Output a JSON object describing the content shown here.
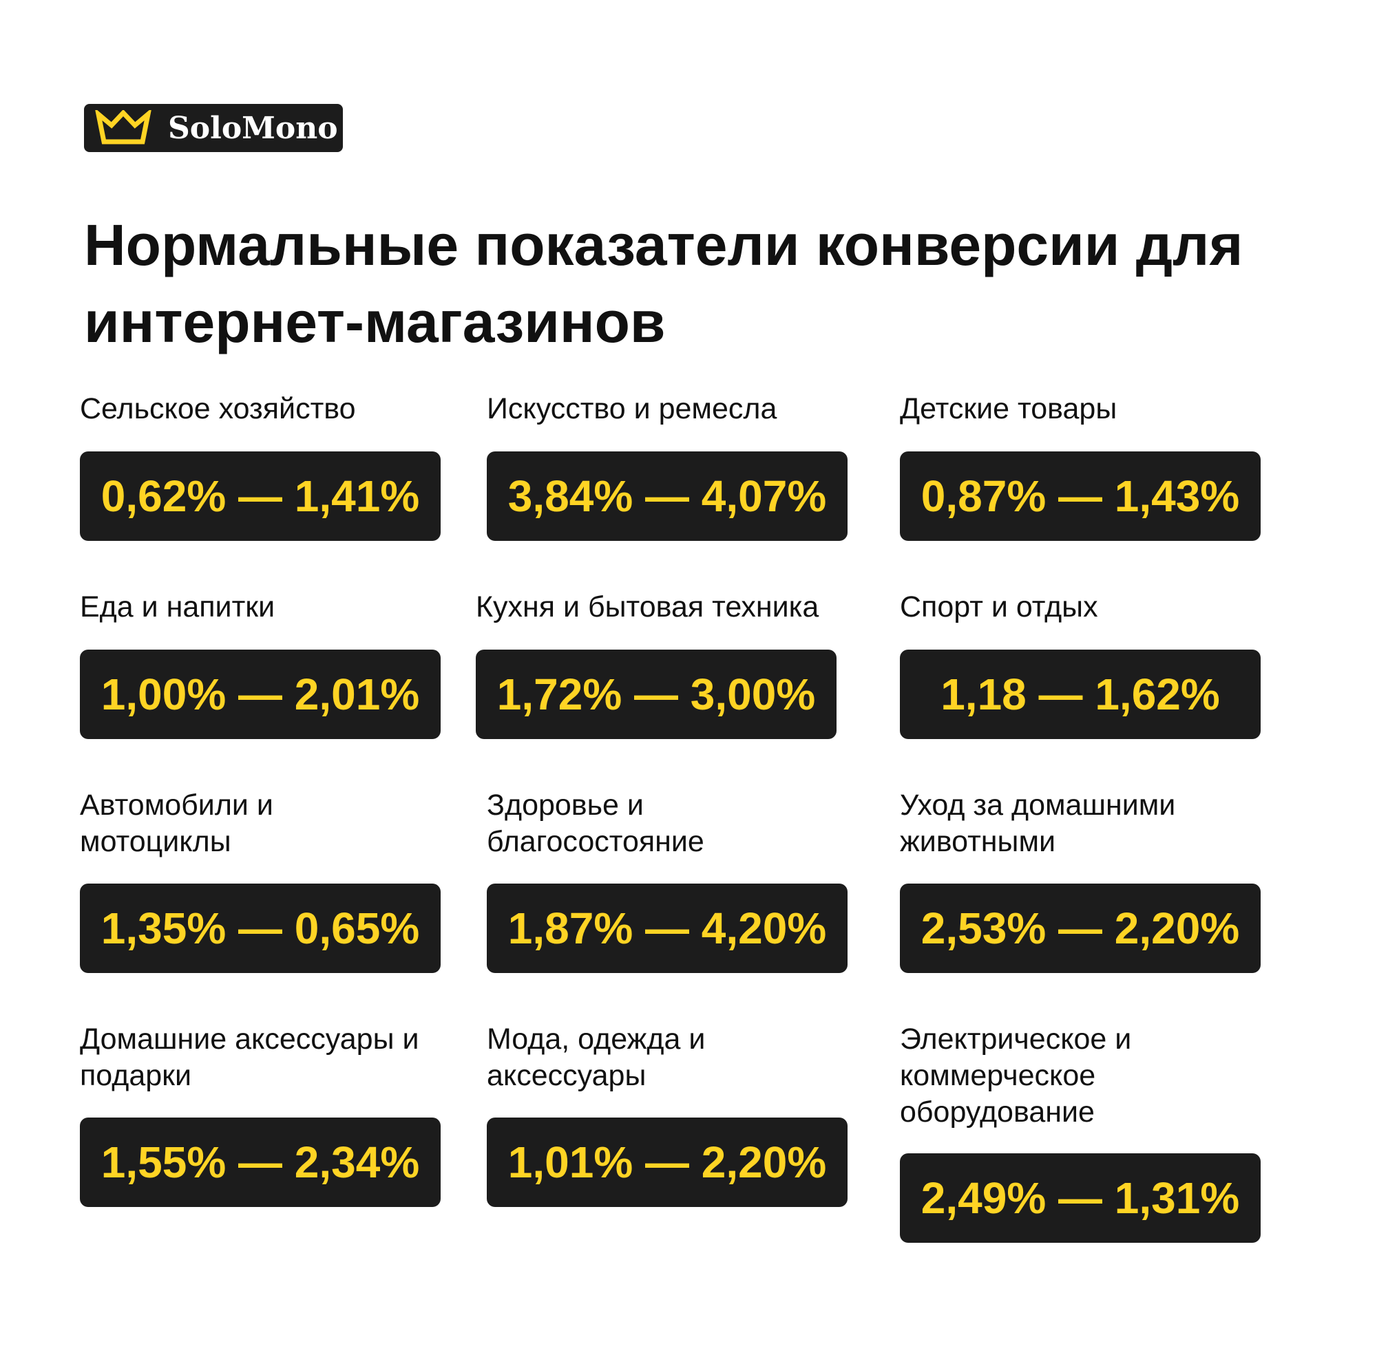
{
  "brand": {
    "name": "SoloMono",
    "accent_color": "#ffd424",
    "icon": "crown-icon"
  },
  "title": "Нормальные показатели конверсии для интернет-магазинов",
  "categories": [
    {
      "label": "Сельское хозяйство",
      "range": "0,62% — 1,41%"
    },
    {
      "label": "Искусство и ремесла",
      "range": "3,84% — 4,07%"
    },
    {
      "label": "Детские товары",
      "range": "0,87% — 1,43%"
    },
    {
      "label": "Еда и напитки",
      "range": "1,00% — 2,01%"
    },
    {
      "label": "Кухня и бытовая техника",
      "range": "1,72% — 3,00%"
    },
    {
      "label": "Спорт и отдых",
      "range": "1,18 — 1,62%"
    },
    {
      "label": "Автомобили и мотоциклы",
      "range": "1,35% — 0,65%"
    },
    {
      "label": "Здоровье и благосостояние",
      "range": "1,87% — 4,20%"
    },
    {
      "label": "Уход за домашними животными",
      "range": "2,53% — 2,20%"
    },
    {
      "label": "Домашние аксессуары и подарки",
      "range": "1,55% — 2,34%"
    },
    {
      "label": "Мода, одежда и аксессуары",
      "range": "1,01% — 2,20%"
    },
    {
      "label": "Электрическое и коммерческое оборудование",
      "range": "2,49% — 1,31%"
    }
  ]
}
